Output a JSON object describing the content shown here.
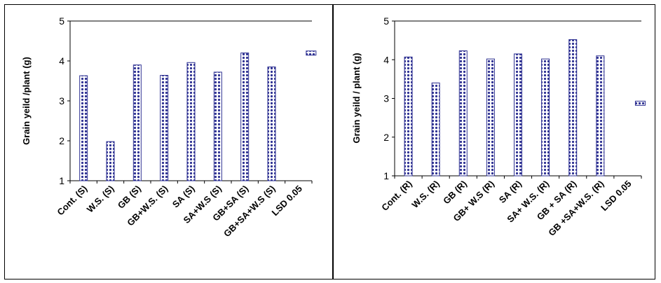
{
  "chart_data": [
    {
      "type": "bar",
      "ylabel": "Grain yeild /plant (g)",
      "ylim": [
        1,
        5
      ],
      "yticks": [
        1,
        2,
        3,
        4,
        5
      ],
      "grid": false,
      "categories": [
        "Cont.  (S)",
        "W.S.   (S)",
        "GB   (S)",
        "GB+W.S.  (S)",
        "SA    (S)",
        "SA+W.S (S)",
        "GB+SA  (S)",
        "GB+SA+W.S (S)",
        "LSD 0.05"
      ],
      "values": [
        3.63,
        1.98,
        3.9,
        3.64,
        3.96,
        3.72,
        4.2,
        3.85,
        null
      ],
      "lsd": 0.1,
      "lsd_center": 4.2
    },
    {
      "type": "bar",
      "ylabel": "Grain yeild / plant (g)",
      "ylim": [
        1,
        5
      ],
      "yticks": [
        1,
        2,
        3,
        4,
        5
      ],
      "grid": false,
      "categories": [
        "Cont. (R)",
        "W.S. (R)",
        "GB  (R)",
        "GB+ W.S (R)",
        "SA   (R)",
        "SA+ W.S. (R)",
        "GB + SA (R)",
        "GB +SA+W.S. (R)",
        "LSD 0.05"
      ],
      "values": [
        4.07,
        3.4,
        4.23,
        4.02,
        4.15,
        4.02,
        4.52,
        4.1,
        null
      ],
      "lsd": 0.1,
      "lsd_center": 2.88
    }
  ],
  "colors": {
    "bar_fill": "#2e3192",
    "bar_bg": "#ffffff",
    "axis": "#000000"
  }
}
